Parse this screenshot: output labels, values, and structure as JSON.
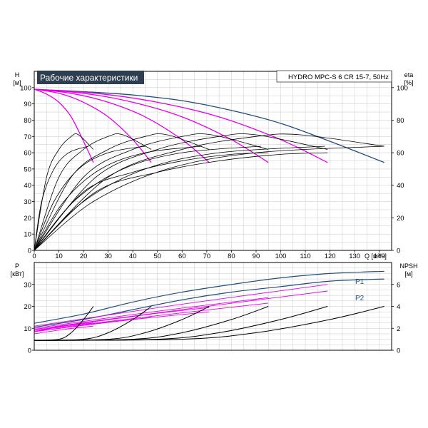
{
  "title_badge": "Рабочие характеристики",
  "model_label": "HYDRO MPC-S 6 CR 15-7, 50Hz",
  "colors": {
    "max_curve": "#1f4e79",
    "speed_curves": "#e600e6",
    "eff_curves": "#000000",
    "grid": "#c8c8c8",
    "badge_bg": "#2d3e50",
    "badge_text": "#ffffff"
  },
  "top_panel": {
    "y_label_name": "H",
    "y_label_unit": "[м]",
    "right_label_name": "eta",
    "right_label_unit": "[%]",
    "x_label": "Q [м³/ч]",
    "x_ticks": [
      0,
      10,
      20,
      30,
      40,
      50,
      60,
      70,
      80,
      90,
      100,
      110,
      120,
      130,
      140
    ],
    "y_ticks": [
      0,
      10,
      20,
      30,
      40,
      50,
      60,
      70,
      80,
      90,
      100
    ],
    "eta_ticks": [
      0,
      20,
      40,
      60,
      80,
      100
    ]
  },
  "bottom_panel": {
    "y_label_name": "P",
    "y_label_unit": "[кВт]",
    "right_label_name": "NPSH",
    "right_label_unit": "[м]",
    "y_ticks": [
      0,
      10,
      20,
      30
    ],
    "npsh_ticks": [
      0,
      2,
      4,
      6
    ],
    "curve_labels": [
      "P1",
      "P2"
    ]
  },
  "chart_data": [
    {
      "type": "line",
      "title": "Рабочие характеристики",
      "xlabel": "Q [м³/ч]",
      "ylabel": "H [м]",
      "y2label": "eta [%]",
      "xlim": [
        0,
        145
      ],
      "ylim": [
        0,
        110
      ],
      "y2lim": [
        0,
        110
      ],
      "grid": true,
      "series": [
        {
          "axis": "H",
          "x": [
            0,
            20,
            40,
            60,
            80,
            100,
            120,
            142
          ],
          "y": [
            99,
            97.5,
            95.5,
            92,
            86,
            78,
            67,
            54
          ]
        },
        {
          "axis": "H",
          "x": [
            0,
            5,
            10,
            15,
            20,
            24
          ],
          "y": [
            99,
            96,
            91,
            82,
            67,
            54
          ]
        },
        {
          "axis": "H",
          "x": [
            0,
            10,
            20,
            30,
            40,
            47.5
          ],
          "y": [
            99,
            96.5,
            91,
            82,
            68,
            54
          ]
        },
        {
          "axis": "H",
          "x": [
            0,
            15,
            30,
            45,
            60,
            71
          ],
          "y": [
            99,
            96.5,
            91,
            82,
            68,
            54
          ]
        },
        {
          "axis": "H",
          "x": [
            0,
            20,
            40,
            60,
            80,
            95
          ],
          "y": [
            99,
            96.5,
            91,
            82,
            68,
            54
          ]
        },
        {
          "axis": "H",
          "x": [
            0,
            25,
            50,
            75,
            100,
            119
          ],
          "y": [
            99,
            96.5,
            91,
            82,
            68,
            54
          ]
        },
        {
          "axis": "eta",
          "x": [
            0,
            5,
            10,
            15,
            18,
            24
          ],
          "y": [
            0,
            45,
            62,
            70,
            71,
            62
          ]
        },
        {
          "axis": "eta",
          "x": [
            0,
            10,
            20,
            30,
            36,
            47.5
          ],
          "y": [
            0,
            45,
            62,
            70,
            71,
            62
          ]
        },
        {
          "axis": "eta",
          "x": [
            0,
            15,
            30,
            45,
            54,
            71
          ],
          "y": [
            0,
            45,
            62,
            70,
            71,
            62
          ]
        },
        {
          "axis": "eta",
          "x": [
            0,
            20,
            40,
            60,
            72,
            95
          ],
          "y": [
            0,
            45,
            62,
            70,
            71,
            62
          ]
        },
        {
          "axis": "eta",
          "x": [
            0,
            25,
            50,
            75,
            90,
            119
          ],
          "y": [
            0,
            45,
            62,
            70,
            71,
            62
          ]
        },
        {
          "axis": "eta",
          "x": [
            0,
            30,
            60,
            90,
            108,
            142
          ],
          "y": [
            0,
            45,
            62,
            70,
            71,
            64
          ]
        },
        {
          "axis": "eta",
          "x": [
            0,
            3,
            8,
            14,
            22
          ],
          "y": [
            0,
            30,
            50,
            60,
            64
          ]
        },
        {
          "axis": "eta",
          "x": [
            0,
            8,
            18,
            30,
            45
          ],
          "y": [
            0,
            30,
            50,
            60,
            64
          ]
        },
        {
          "axis": "eta",
          "x": [
            0,
            12,
            27,
            45,
            68
          ],
          "y": [
            0,
            30,
            50,
            60,
            64
          ]
        },
        {
          "axis": "eta",
          "x": [
            0,
            16,
            36,
            60,
            92
          ],
          "y": [
            0,
            30,
            50,
            60,
            64
          ]
        },
        {
          "axis": "eta",
          "x": [
            0,
            20,
            45,
            75,
            118
          ],
          "y": [
            0,
            30,
            50,
            60,
            64
          ]
        },
        {
          "axis": "eta",
          "x": [
            0,
            24,
            54,
            90,
            142
          ],
          "y": [
            0,
            30,
            50,
            60,
            64
          ]
        },
        {
          "axis": "eta",
          "x": [
            0,
            20,
            40,
            60,
            80,
            95
          ],
          "y": [
            0,
            36,
            48,
            55,
            59,
            60
          ]
        },
        {
          "axis": "eta",
          "x": [
            0,
            25,
            50,
            75,
            100,
            119
          ],
          "y": [
            0,
            36,
            48,
            55,
            59,
            60
          ]
        }
      ]
    },
    {
      "type": "line",
      "xlabel": "Q [м³/ч]",
      "ylabel": "P [кВт]",
      "y2label": "NPSH [м]",
      "xlim": [
        0,
        145
      ],
      "ylim": [
        0,
        40
      ],
      "y2lim": [
        0,
        8
      ],
      "grid": true,
      "series": [
        {
          "name": "P1",
          "axis": "P",
          "x": [
            0,
            20,
            40,
            60,
            80,
            100,
            120,
            142
          ],
          "y": [
            12.3,
            16.5,
            22,
            26.5,
            30,
            33,
            35,
            36
          ]
        },
        {
          "name": "P2",
          "axis": "P",
          "x": [
            0,
            20,
            40,
            60,
            80,
            100,
            120,
            142
          ],
          "y": [
            10.5,
            14,
            18.5,
            23,
            26.5,
            29,
            31.5,
            32.5
          ]
        },
        {
          "axis": "P",
          "x": [
            0,
            12,
            24
          ],
          "y": [
            7.5,
            9.5,
            11
          ]
        },
        {
          "axis": "P",
          "x": [
            0,
            12,
            24
          ],
          "y": [
            8.5,
            11,
            12.5
          ]
        },
        {
          "axis": "P",
          "x": [
            0,
            24,
            47.5
          ],
          "y": [
            9,
            13,
            16.5
          ]
        },
        {
          "axis": "P",
          "x": [
            0,
            24,
            47.5
          ],
          "y": [
            8.5,
            12,
            15
          ]
        },
        {
          "axis": "P",
          "x": [
            0,
            36,
            71
          ],
          "y": [
            9.5,
            15,
            19.5
          ]
        },
        {
          "axis": "P",
          "x": [
            0,
            36,
            71
          ],
          "y": [
            8.5,
            13.5,
            17.5
          ]
        },
        {
          "axis": "P",
          "x": [
            0,
            48,
            95
          ],
          "y": [
            10,
            17.5,
            24
          ]
        },
        {
          "axis": "P",
          "x": [
            0,
            48,
            95
          ],
          "y": [
            9,
            15.5,
            21.5
          ]
        },
        {
          "axis": "P",
          "x": [
            0,
            60,
            119
          ],
          "y": [
            11,
            21,
            30
          ]
        },
        {
          "axis": "P",
          "x": [
            0,
            60,
            119
          ],
          "y": [
            9.5,
            18.5,
            27
          ]
        },
        {
          "axis": "NPSH",
          "x": [
            0,
            10,
            15,
            20,
            24
          ],
          "y": [
            0.9,
            1.0,
            1.6,
            2.8,
            4.0
          ]
        },
        {
          "axis": "NPSH",
          "x": [
            0,
            20,
            30,
            40,
            47.5
          ],
          "y": [
            0.9,
            1.0,
            1.6,
            2.8,
            4.0
          ]
        },
        {
          "axis": "NPSH",
          "x": [
            0,
            30,
            45,
            60,
            71
          ],
          "y": [
            0.9,
            1.0,
            1.6,
            2.8,
            4.0
          ]
        },
        {
          "axis": "NPSH",
          "x": [
            0,
            40,
            60,
            80,
            95
          ],
          "y": [
            0.9,
            1.0,
            1.6,
            2.8,
            4.0
          ]
        },
        {
          "axis": "NPSH",
          "x": [
            0,
            50,
            75,
            100,
            119
          ],
          "y": [
            0.9,
            1.0,
            1.6,
            2.8,
            4.0
          ]
        },
        {
          "axis": "NPSH",
          "x": [
            0,
            60,
            90,
            120,
            142
          ],
          "y": [
            0.9,
            1.0,
            1.6,
            2.8,
            4.0
          ]
        }
      ]
    }
  ]
}
